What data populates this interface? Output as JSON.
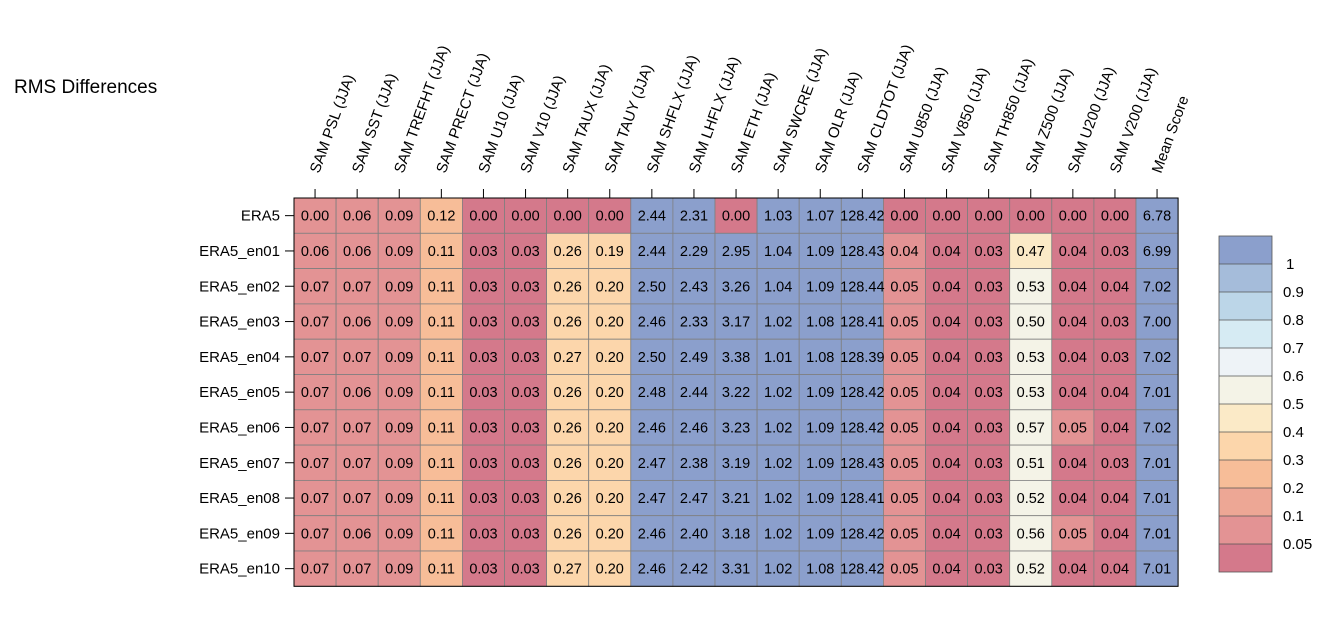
{
  "chart_data": {
    "type": "heatmap",
    "title": "RMS Differences",
    "columns": [
      "SAM PSL (JJA)",
      "SAM SST (JJA)",
      "SAM TREFHT (JJA)",
      "SAM PRECT (JJA)",
      "SAM U10 (JJA)",
      "SAM V10 (JJA)",
      "SAM TAUX (JJA)",
      "SAM TAUY (JJA)",
      "SAM SHFLX (JJA)",
      "SAM LHFLX (JJA)",
      "SAM ETH (JJA)",
      "SAM SWCRE (JJA)",
      "SAM OLR (JJA)",
      "SAM CLDTOT (JJA)",
      "SAM U850 (JJA)",
      "SAM V850 (JJA)",
      "SAM TH850 (JJA)",
      "SAM Z500 (JJA)",
      "SAM U200 (JJA)",
      "SAM V200 (JJA)",
      "Mean Score"
    ],
    "rows": [
      "ERA5",
      "ERA5_en01",
      "ERA5_en02",
      "ERA5_en03",
      "ERA5_en04",
      "ERA5_en05",
      "ERA5_en06",
      "ERA5_en07",
      "ERA5_en08",
      "ERA5_en09",
      "ERA5_en10"
    ],
    "values": [
      [
        "0.00",
        "0.06",
        "0.09",
        "0.12",
        "0.00",
        "0.00",
        "0.00",
        "0.00",
        "2.44",
        "2.31",
        "0.00",
        "1.03",
        "1.07",
        "128.42",
        "0.00",
        "0.00",
        "0.00",
        "0.00",
        "0.00",
        "0.00",
        "6.78"
      ],
      [
        "0.06",
        "0.06",
        "0.09",
        "0.11",
        "0.03",
        "0.03",
        "0.26",
        "0.19",
        "2.44",
        "2.29",
        "2.95",
        "1.04",
        "1.09",
        "128.43",
        "0.04",
        "0.04",
        "0.03",
        "0.47",
        "0.04",
        "0.03",
        "6.99"
      ],
      [
        "0.07",
        "0.07",
        "0.09",
        "0.11",
        "0.03",
        "0.03",
        "0.26",
        "0.20",
        "2.50",
        "2.43",
        "3.26",
        "1.04",
        "1.09",
        "128.44",
        "0.05",
        "0.04",
        "0.03",
        "0.53",
        "0.04",
        "0.04",
        "7.02"
      ],
      [
        "0.07",
        "0.06",
        "0.09",
        "0.11",
        "0.03",
        "0.03",
        "0.26",
        "0.20",
        "2.46",
        "2.33",
        "3.17",
        "1.02",
        "1.08",
        "128.41",
        "0.05",
        "0.04",
        "0.03",
        "0.50",
        "0.04",
        "0.03",
        "7.00"
      ],
      [
        "0.07",
        "0.07",
        "0.09",
        "0.11",
        "0.03",
        "0.03",
        "0.27",
        "0.20",
        "2.50",
        "2.49",
        "3.38",
        "1.01",
        "1.08",
        "128.39",
        "0.05",
        "0.04",
        "0.03",
        "0.53",
        "0.04",
        "0.03",
        "7.02"
      ],
      [
        "0.07",
        "0.06",
        "0.09",
        "0.11",
        "0.03",
        "0.03",
        "0.26",
        "0.20",
        "2.48",
        "2.44",
        "3.22",
        "1.02",
        "1.09",
        "128.42",
        "0.05",
        "0.04",
        "0.03",
        "0.53",
        "0.04",
        "0.04",
        "7.01"
      ],
      [
        "0.07",
        "0.07",
        "0.09",
        "0.11",
        "0.03",
        "0.03",
        "0.26",
        "0.20",
        "2.46",
        "2.46",
        "3.23",
        "1.02",
        "1.09",
        "128.42",
        "0.05",
        "0.04",
        "0.03",
        "0.57",
        "0.05",
        "0.04",
        "7.02"
      ],
      [
        "0.07",
        "0.07",
        "0.09",
        "0.11",
        "0.03",
        "0.03",
        "0.26",
        "0.20",
        "2.47",
        "2.38",
        "3.19",
        "1.02",
        "1.09",
        "128.43",
        "0.05",
        "0.04",
        "0.03",
        "0.51",
        "0.04",
        "0.03",
        "7.01"
      ],
      [
        "0.07",
        "0.07",
        "0.09",
        "0.11",
        "0.03",
        "0.03",
        "0.26",
        "0.20",
        "2.47",
        "2.47",
        "3.21",
        "1.02",
        "1.09",
        "128.41",
        "0.05",
        "0.04",
        "0.03",
        "0.52",
        "0.04",
        "0.04",
        "7.01"
      ],
      [
        "0.07",
        "0.06",
        "0.09",
        "0.11",
        "0.03",
        "0.03",
        "0.26",
        "0.20",
        "2.46",
        "2.40",
        "3.18",
        "1.02",
        "1.09",
        "128.42",
        "0.05",
        "0.04",
        "0.03",
        "0.56",
        "0.05",
        "0.04",
        "7.01"
      ],
      [
        "0.07",
        "0.07",
        "0.09",
        "0.11",
        "0.03",
        "0.03",
        "0.27",
        "0.20",
        "2.46",
        "2.42",
        "3.31",
        "1.02",
        "1.08",
        "128.42",
        "0.05",
        "0.04",
        "0.03",
        "0.52",
        "0.04",
        "0.04",
        "7.01"
      ]
    ],
    "colorbar": {
      "levels": [
        "1",
        "0.9",
        "0.8",
        "0.7",
        "0.6",
        "0.5",
        "0.4",
        "0.3",
        "0.2",
        "0.1",
        "0.05"
      ],
      "colors": [
        "#8b9fcc",
        "#a5bcda",
        "#bcd6e8",
        "#d6ebf3",
        "#eef3f7",
        "#f4f3e7",
        "#fbeac7",
        "#fcd6ab",
        "#f7bd98",
        "#eda795",
        "#e39394",
        "#d4798b"
      ]
    },
    "grid": true,
    "legend_position": "right"
  }
}
